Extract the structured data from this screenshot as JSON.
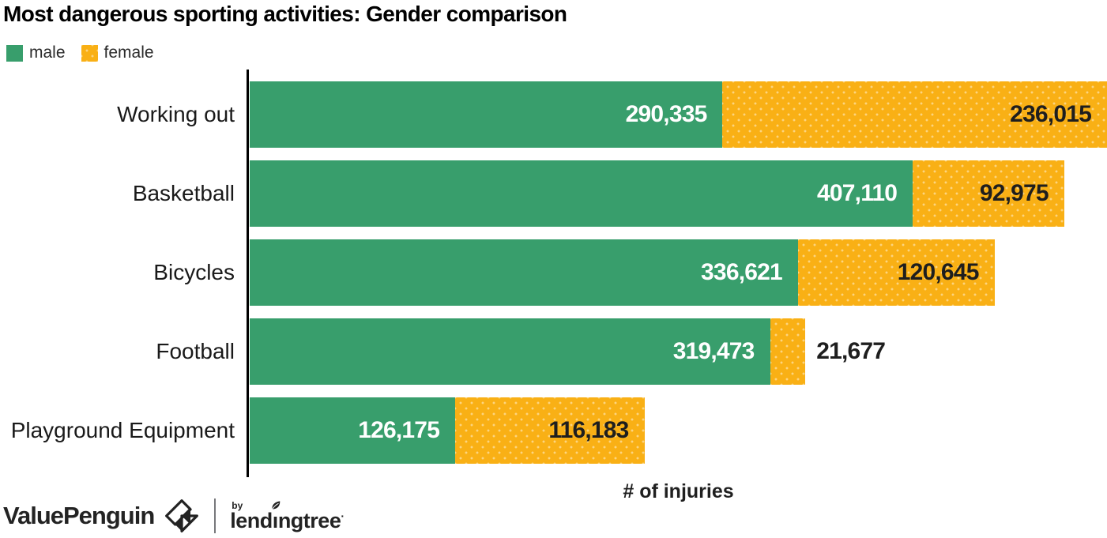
{
  "title": "Most dangerous sporting activities: Gender comparison",
  "legend": {
    "items": [
      {
        "label": "male",
        "swatch": "solid-square"
      },
      {
        "label": "female",
        "swatch": "dotted-square"
      }
    ]
  },
  "colors": {
    "male": "#389E6C",
    "female": "#F9B015",
    "female_pattern_dot": "rgba(255,255,255,0.45)",
    "value_on_male": "#FFFFFF",
    "value_on_female": "#1E1E1E",
    "axis": "#000000"
  },
  "chart_data": {
    "type": "bar",
    "orientation": "horizontal",
    "stacked": true,
    "title": "Most dangerous sporting activities: Gender comparison",
    "xlabel": "# of injuries",
    "categories": [
      "Working out",
      "Basketball",
      "Bicycles",
      "Football",
      "Playground Equipment"
    ],
    "series": [
      {
        "name": "male",
        "values": [
          290335,
          407110,
          336621,
          319473,
          126175
        ]
      },
      {
        "name": "female",
        "values": [
          236015,
          92975,
          120645,
          21677,
          116183
        ]
      }
    ],
    "totals": [
      526350,
      500085,
      457266,
      341150,
      242358
    ],
    "xlim": [
      0,
      526350
    ],
    "grid": false,
    "legend_position": "top-left",
    "value_labels": "inside-end",
    "female_value_placement": [
      "inside",
      "inside",
      "inside",
      "outside",
      "inside"
    ]
  },
  "xlabel": "# of injuries",
  "footer": {
    "brand": "ValuePenguin",
    "brand_mark": "origami-diamond-icon",
    "by_label": "by",
    "partner_prefix": "lend",
    "partner_dotless_i": "ı",
    "partner_suffix": "ngtree",
    "trademark_dot": "·",
    "partner_mark": "leaf-icon"
  }
}
